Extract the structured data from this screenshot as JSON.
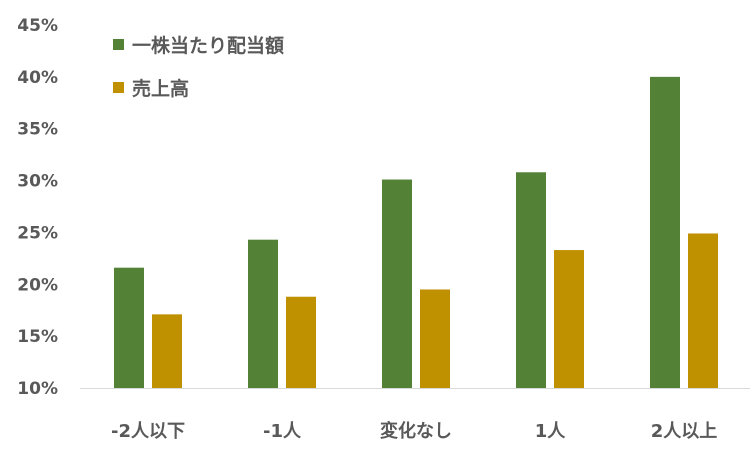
{
  "chart_data": {
    "type": "bar",
    "title": "",
    "xlabel": "",
    "ylabel": "",
    "categories": [
      "-2人以下",
      "-1人",
      "変化なし",
      "1人",
      "2人以上"
    ],
    "series": [
      {
        "name": "一株当たり配当額",
        "color": "#538135",
        "values": [
          21.6,
          24.3,
          30.1,
          30.8,
          40.0
        ]
      },
      {
        "name": "売上高",
        "color": "#BF9000",
        "values": [
          17.1,
          18.8,
          19.5,
          23.3,
          24.9
        ]
      }
    ],
    "ylim": [
      10,
      45
    ],
    "yticks": [
      10,
      15,
      20,
      25,
      30,
      35,
      40,
      45
    ],
    "ytick_labels": [
      "10%",
      "15%",
      "20%",
      "25%",
      "30%",
      "35%",
      "40%",
      "45%"
    ],
    "grid": false,
    "legend_position": "top-left"
  }
}
